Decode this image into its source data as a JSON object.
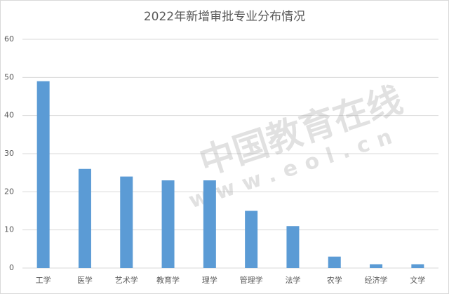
{
  "chart_data": {
    "type": "bar",
    "title": "2022年新增审批专业分布情况",
    "categories": [
      "工学",
      "医学",
      "艺术学",
      "教育学",
      "理学",
      "管理学",
      "法学",
      "农学",
      "经济学",
      "文学"
    ],
    "values": [
      49,
      26,
      24,
      23,
      23,
      15,
      11,
      3,
      1,
      1
    ],
    "color": "#5b9bd5",
    "ylim": [
      0,
      60
    ],
    "yticks": [
      0,
      10,
      20,
      30,
      40,
      50,
      60
    ],
    "grid": true,
    "watermark": "中国教育在线",
    "watermark_url": "www.eol.cn"
  }
}
